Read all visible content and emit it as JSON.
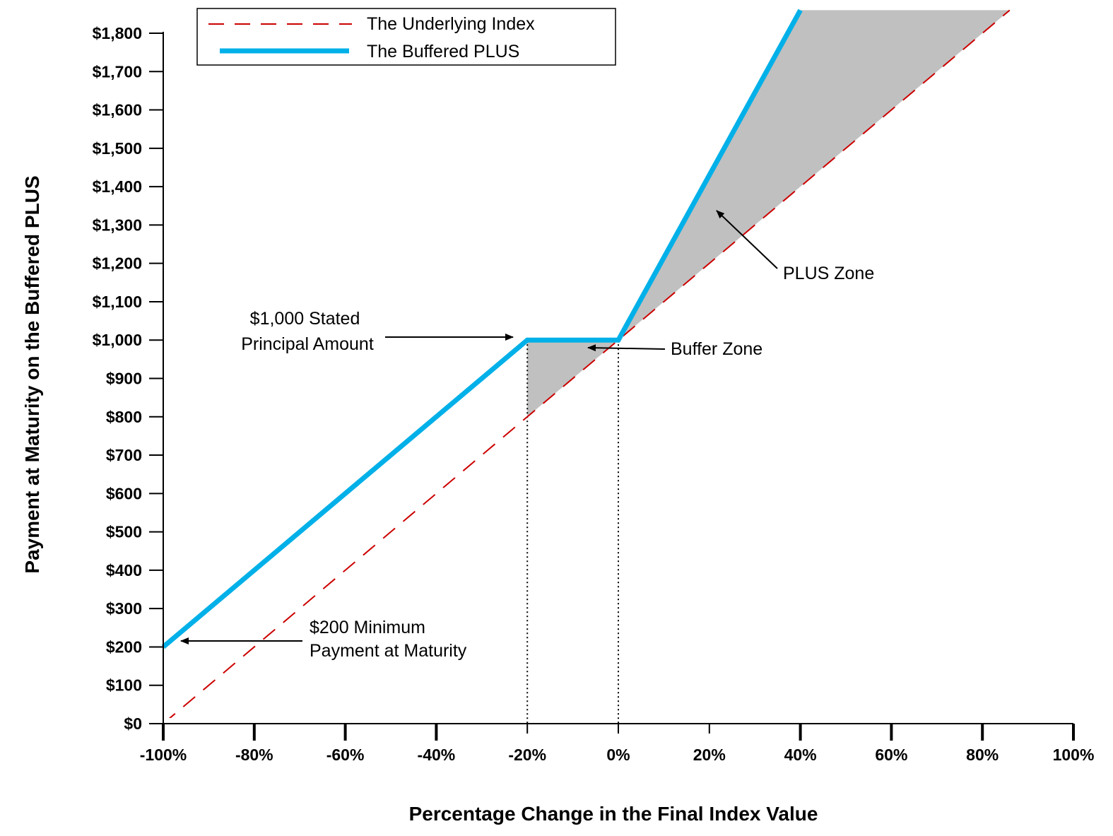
{
  "chart_data": {
    "type": "line",
    "title": "",
    "xlabel": "Percentage Change in the Final Index Value",
    "ylabel": "Payment at Maturity on the Buffered PLUS",
    "xlim": [
      -100,
      100
    ],
    "ylim": [
      0,
      1800
    ],
    "x_ticks": [
      {
        "value": -100,
        "label": "-100%"
      },
      {
        "value": -80,
        "label": "-80%"
      },
      {
        "value": -60,
        "label": "-60%"
      },
      {
        "value": -40,
        "label": "-40%"
      },
      {
        "value": -20,
        "label": "-20%"
      },
      {
        "value": 0,
        "label": "0%"
      },
      {
        "value": 20,
        "label": "20%"
      },
      {
        "value": 40,
        "label": "40%"
      },
      {
        "value": 60,
        "label": "60%"
      },
      {
        "value": 80,
        "label": "80%"
      },
      {
        "value": 100,
        "label": "100%"
      }
    ],
    "y_ticks": [
      {
        "value": 0,
        "label": "$0"
      },
      {
        "value": 100,
        "label": "$100"
      },
      {
        "value": 200,
        "label": "$200"
      },
      {
        "value": 300,
        "label": "$300"
      },
      {
        "value": 400,
        "label": "$400"
      },
      {
        "value": 500,
        "label": "$500"
      },
      {
        "value": 600,
        "label": "$600"
      },
      {
        "value": 700,
        "label": "$700"
      },
      {
        "value": 800,
        "label": "$800"
      },
      {
        "value": 900,
        "label": "$900"
      },
      {
        "value": 1000,
        "label": "$1,000"
      },
      {
        "value": 1100,
        "label": "$1,100"
      },
      {
        "value": 1200,
        "label": "$1,200"
      },
      {
        "value": 1300,
        "label": "$1,300"
      },
      {
        "value": 1400,
        "label": "$1,400"
      },
      {
        "value": 1500,
        "label": "$1,500"
      },
      {
        "value": 1600,
        "label": "$1,600"
      },
      {
        "value": 1700,
        "label": "$1,700"
      },
      {
        "value": 1800,
        "label": "$1,800"
      }
    ],
    "series": [
      {
        "name": "The Underlying Index",
        "style": "dashed",
        "color": "#cc0000",
        "points": [
          [
            -100,
            0
          ],
          [
            86,
            1860
          ]
        ]
      },
      {
        "name": "The Buffered PLUS",
        "style": "solid",
        "color": "#00b0e8",
        "points": [
          [
            -100,
            200
          ],
          [
            -20,
            1000
          ],
          [
            0,
            1000
          ],
          [
            40,
            1860
          ]
        ]
      }
    ],
    "shaded_regions": [
      {
        "name": "Buffer Zone",
        "color": "#c0c0c0",
        "points": [
          [
            -20,
            800
          ],
          [
            -20,
            1000
          ],
          [
            0,
            1000
          ]
        ]
      },
      {
        "name": "PLUS Zone",
        "color": "#c0c0c0",
        "points": [
          [
            0,
            1000
          ],
          [
            40,
            1860
          ],
          [
            86,
            1860
          ]
        ]
      }
    ],
    "reference_lines": [
      {
        "x": -20,
        "style": "dotted",
        "color": "#000000"
      },
      {
        "x": 0,
        "style": "dotted",
        "color": "#000000"
      }
    ],
    "legend": {
      "position": "top-left",
      "entries": [
        "The Underlying Index",
        "The Buffered PLUS"
      ]
    },
    "annotations": [
      {
        "lines": [
          "$1,000 Stated",
          "Principal Amount"
        ],
        "points_to": [
          -20,
          1000
        ]
      },
      {
        "lines": [
          "Buffer  Zone"
        ],
        "points_to": [
          -5,
          980
        ]
      },
      {
        "lines": [
          "PLUS Zone"
        ],
        "points_to": [
          22,
          1370
        ]
      },
      {
        "lines": [
          "$200 Minimum",
          "Payment at Maturity"
        ],
        "points_to": [
          -96,
          220
        ]
      }
    ],
    "grid": false
  }
}
